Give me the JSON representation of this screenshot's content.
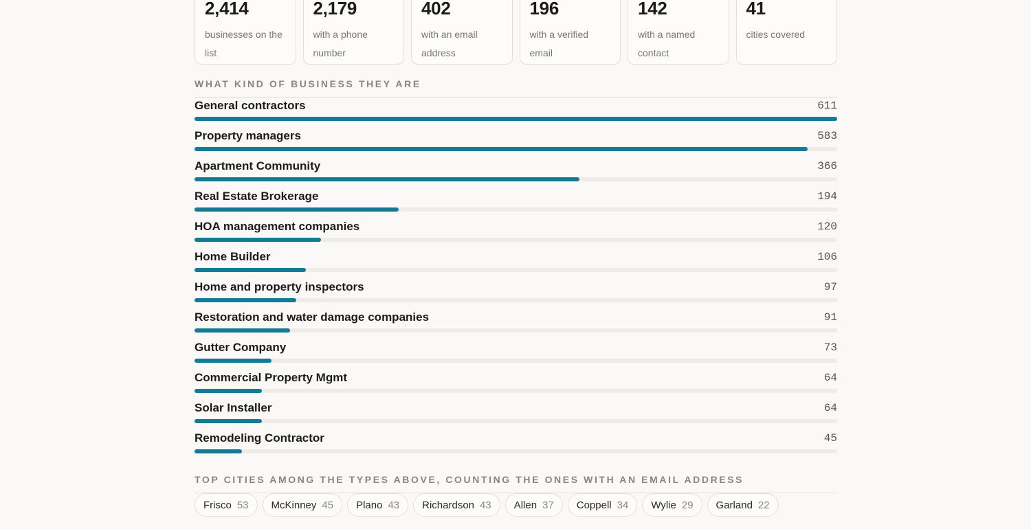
{
  "stats": [
    {
      "value": "2,414",
      "label": "businesses on the list"
    },
    {
      "value": "2,179",
      "label": "with a phone number"
    },
    {
      "value": "402",
      "label": "with an email address"
    },
    {
      "value": "196",
      "label": "with a verified email"
    },
    {
      "value": "142",
      "label": "with a named contact"
    },
    {
      "value": "41",
      "label": "cities covered"
    }
  ],
  "business_section": {
    "title": "WHAT KIND OF BUSINESS THEY ARE"
  },
  "chart_data": {
    "type": "bar",
    "orientation": "horizontal",
    "categories": [
      "General contractors",
      "Property managers",
      "Apartment Community",
      "Real Estate Brokerage",
      "HOA management companies",
      "Home Builder",
      "Home and property inspectors",
      "Restoration and water damage companies",
      "Gutter Company",
      "Commercial Property Mgmt",
      "Solar Installer",
      "Remodeling Contractor"
    ],
    "values": [
      611,
      583,
      366,
      194,
      120,
      106,
      97,
      91,
      73,
      64,
      64,
      45
    ],
    "xlim": [
      0,
      611
    ],
    "bar_color": "#127b96",
    "track_color": "#efece8"
  },
  "cities_section": {
    "title": "TOP CITIES AMONG THE TYPES ABOVE, COUNTING THE ONES WITH AN EMAIL ADDRESS",
    "cities": [
      {
        "name": "Frisco",
        "count": "53"
      },
      {
        "name": "McKinney",
        "count": "45"
      },
      {
        "name": "Plano",
        "count": "43"
      },
      {
        "name": "Richardson",
        "count": "43"
      },
      {
        "name": "Allen",
        "count": "37"
      },
      {
        "name": "Coppell",
        "count": "34"
      },
      {
        "name": "Wylie",
        "count": "29"
      },
      {
        "name": "Garland",
        "count": "22"
      }
    ]
  }
}
